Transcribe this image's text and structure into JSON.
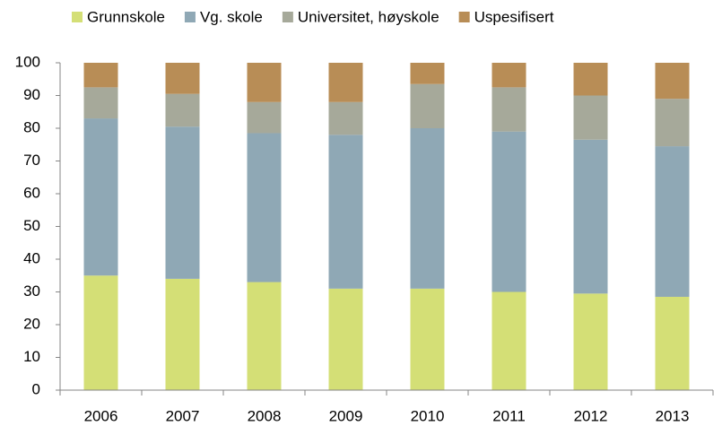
{
  "chart_data": {
    "type": "stacked-bar",
    "categories": [
      "2006",
      "2007",
      "2008",
      "2009",
      "2010",
      "2011",
      "2012",
      "2013"
    ],
    "series": [
      {
        "name": "Grunnskole",
        "color": "#d4df76",
        "values": [
          35,
          34,
          33,
          31,
          31,
          30,
          29.5,
          28.5
        ]
      },
      {
        "name": "Vg. skole",
        "color": "#8fa8b5",
        "values": [
          48,
          46.5,
          45.5,
          47,
          49,
          49,
          47,
          46
        ]
      },
      {
        "name": "Universitet, høyskole",
        "color": "#a6a99a",
        "values": [
          9.5,
          10,
          9.5,
          10,
          13.5,
          13.5,
          13.5,
          14.5
        ]
      },
      {
        "name": "Uspesifisert",
        "color": "#b88d56",
        "values": [
          7.5,
          9.5,
          12,
          12,
          6.5,
          7.5,
          10,
          11
        ]
      }
    ],
    "ylim": [
      0,
      100
    ],
    "yticks": [
      0,
      10,
      20,
      30,
      40,
      50,
      60,
      70,
      80,
      90,
      100
    ],
    "grid": false,
    "legend": "top"
  }
}
